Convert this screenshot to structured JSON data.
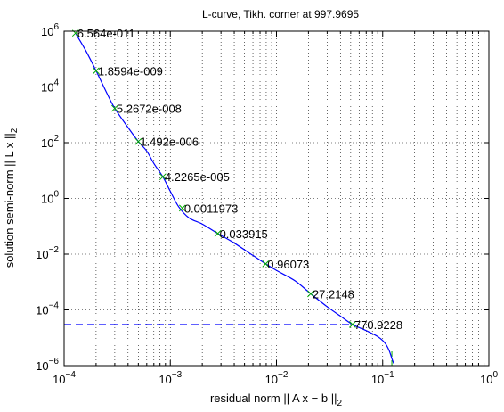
{
  "chart_data": {
    "type": "line",
    "title": "L-curve, Tikh. corner at 997.9695",
    "xlabel": {
      "text": "residual norm || A x − b ||",
      "sub": "2"
    },
    "ylabel": {
      "text": "solution semi-norm || L x ||",
      "sub": "2"
    },
    "x_scale": "log",
    "y_scale": "log",
    "xlim": [
      0.0001,
      1
    ],
    "ylim": [
      1e-06,
      1000000
    ],
    "grid": true,
    "x_ticks": [
      {
        "base": "10",
        "exp": "−4",
        "value": 0.0001
      },
      {
        "base": "10",
        "exp": "−3",
        "value": 0.001
      },
      {
        "base": "10",
        "exp": "−2",
        "value": 0.01
      },
      {
        "base": "10",
        "exp": "−1",
        "value": 0.1
      },
      {
        "base": "10",
        "exp": "0",
        "value": 1
      }
    ],
    "y_ticks": [
      {
        "base": "10",
        "exp": "−6",
        "value": 1e-06
      },
      {
        "base": "10",
        "exp": "−4",
        "value": 0.0001
      },
      {
        "base": "10",
        "exp": "−2",
        "value": 0.01
      },
      {
        "base": "10",
        "exp": "0",
        "value": 1
      },
      {
        "base": "10",
        "exp": "2",
        "value": 100
      },
      {
        "base": "10",
        "exp": "4",
        "value": 10000
      },
      {
        "base": "10",
        "exp": "6",
        "value": 1000000
      }
    ],
    "curve": {
      "color": "#0000ff",
      "points": [
        [
          0.000128,
          850000
        ],
        [
          0.00016,
          200000
        ],
        [
          0.0002,
          38000
        ],
        [
          0.00025,
          6500
        ],
        [
          0.0003,
          1700
        ],
        [
          0.0004,
          350
        ],
        [
          0.0005,
          110
        ],
        [
          0.0006,
          50
        ],
        [
          0.0007,
          18
        ],
        [
          0.00085,
          6
        ],
        [
          0.001,
          1.8
        ],
        [
          0.0012,
          0.5
        ],
        [
          0.0015,
          0.2
        ],
        [
          0.002,
          0.12
        ],
        [
          0.0028,
          0.055
        ],
        [
          0.004,
          0.025
        ],
        [
          0.006,
          0.009
        ],
        [
          0.0079,
          0.0045
        ],
        [
          0.01,
          0.0026
        ],
        [
          0.015,
          0.0011
        ],
        [
          0.021,
          0.00038
        ],
        [
          0.03,
          0.00013
        ],
        [
          0.04,
          6e-05
        ],
        [
          0.052,
          3e-05
        ],
        [
          0.07,
          1.8e-05
        ],
        [
          0.09,
          1.1e-05
        ],
        [
          0.105,
          6.5e-06
        ],
        [
          0.115,
          3.5e-06
        ],
        [
          0.122,
          1.8e-06
        ],
        [
          0.127,
          1.2e-06
        ]
      ]
    },
    "markers": {
      "color": "#00aa00",
      "points": [
        {
          "x": 0.000128,
          "y": 850000,
          "label": "6.564e-011"
        },
        {
          "x": 0.0002,
          "y": 38000,
          "label": "1.8594e-009"
        },
        {
          "x": 0.0003,
          "y": 1700,
          "label": "5.2672e-008"
        },
        {
          "x": 0.0005,
          "y": 110,
          "label": "1.492e-006"
        },
        {
          "x": 0.00085,
          "y": 6,
          "label": "4.2265e-005"
        },
        {
          "x": 0.0013,
          "y": 0.45,
          "label": "0.0011973"
        },
        {
          "x": 0.0028,
          "y": 0.055,
          "label": "0.033915"
        },
        {
          "x": 0.0079,
          "y": 0.0045,
          "label": "0.96073"
        },
        {
          "x": 0.021,
          "y": 0.00038,
          "label": "27.2148"
        },
        {
          "x": 0.052,
          "y": 3e-05,
          "label": "770.9228"
        }
      ]
    },
    "corner": {
      "color": "#0000ff",
      "horizontal_y": 3e-05,
      "vertical_x": 0.122,
      "vertical_color": "#00aa00"
    }
  }
}
